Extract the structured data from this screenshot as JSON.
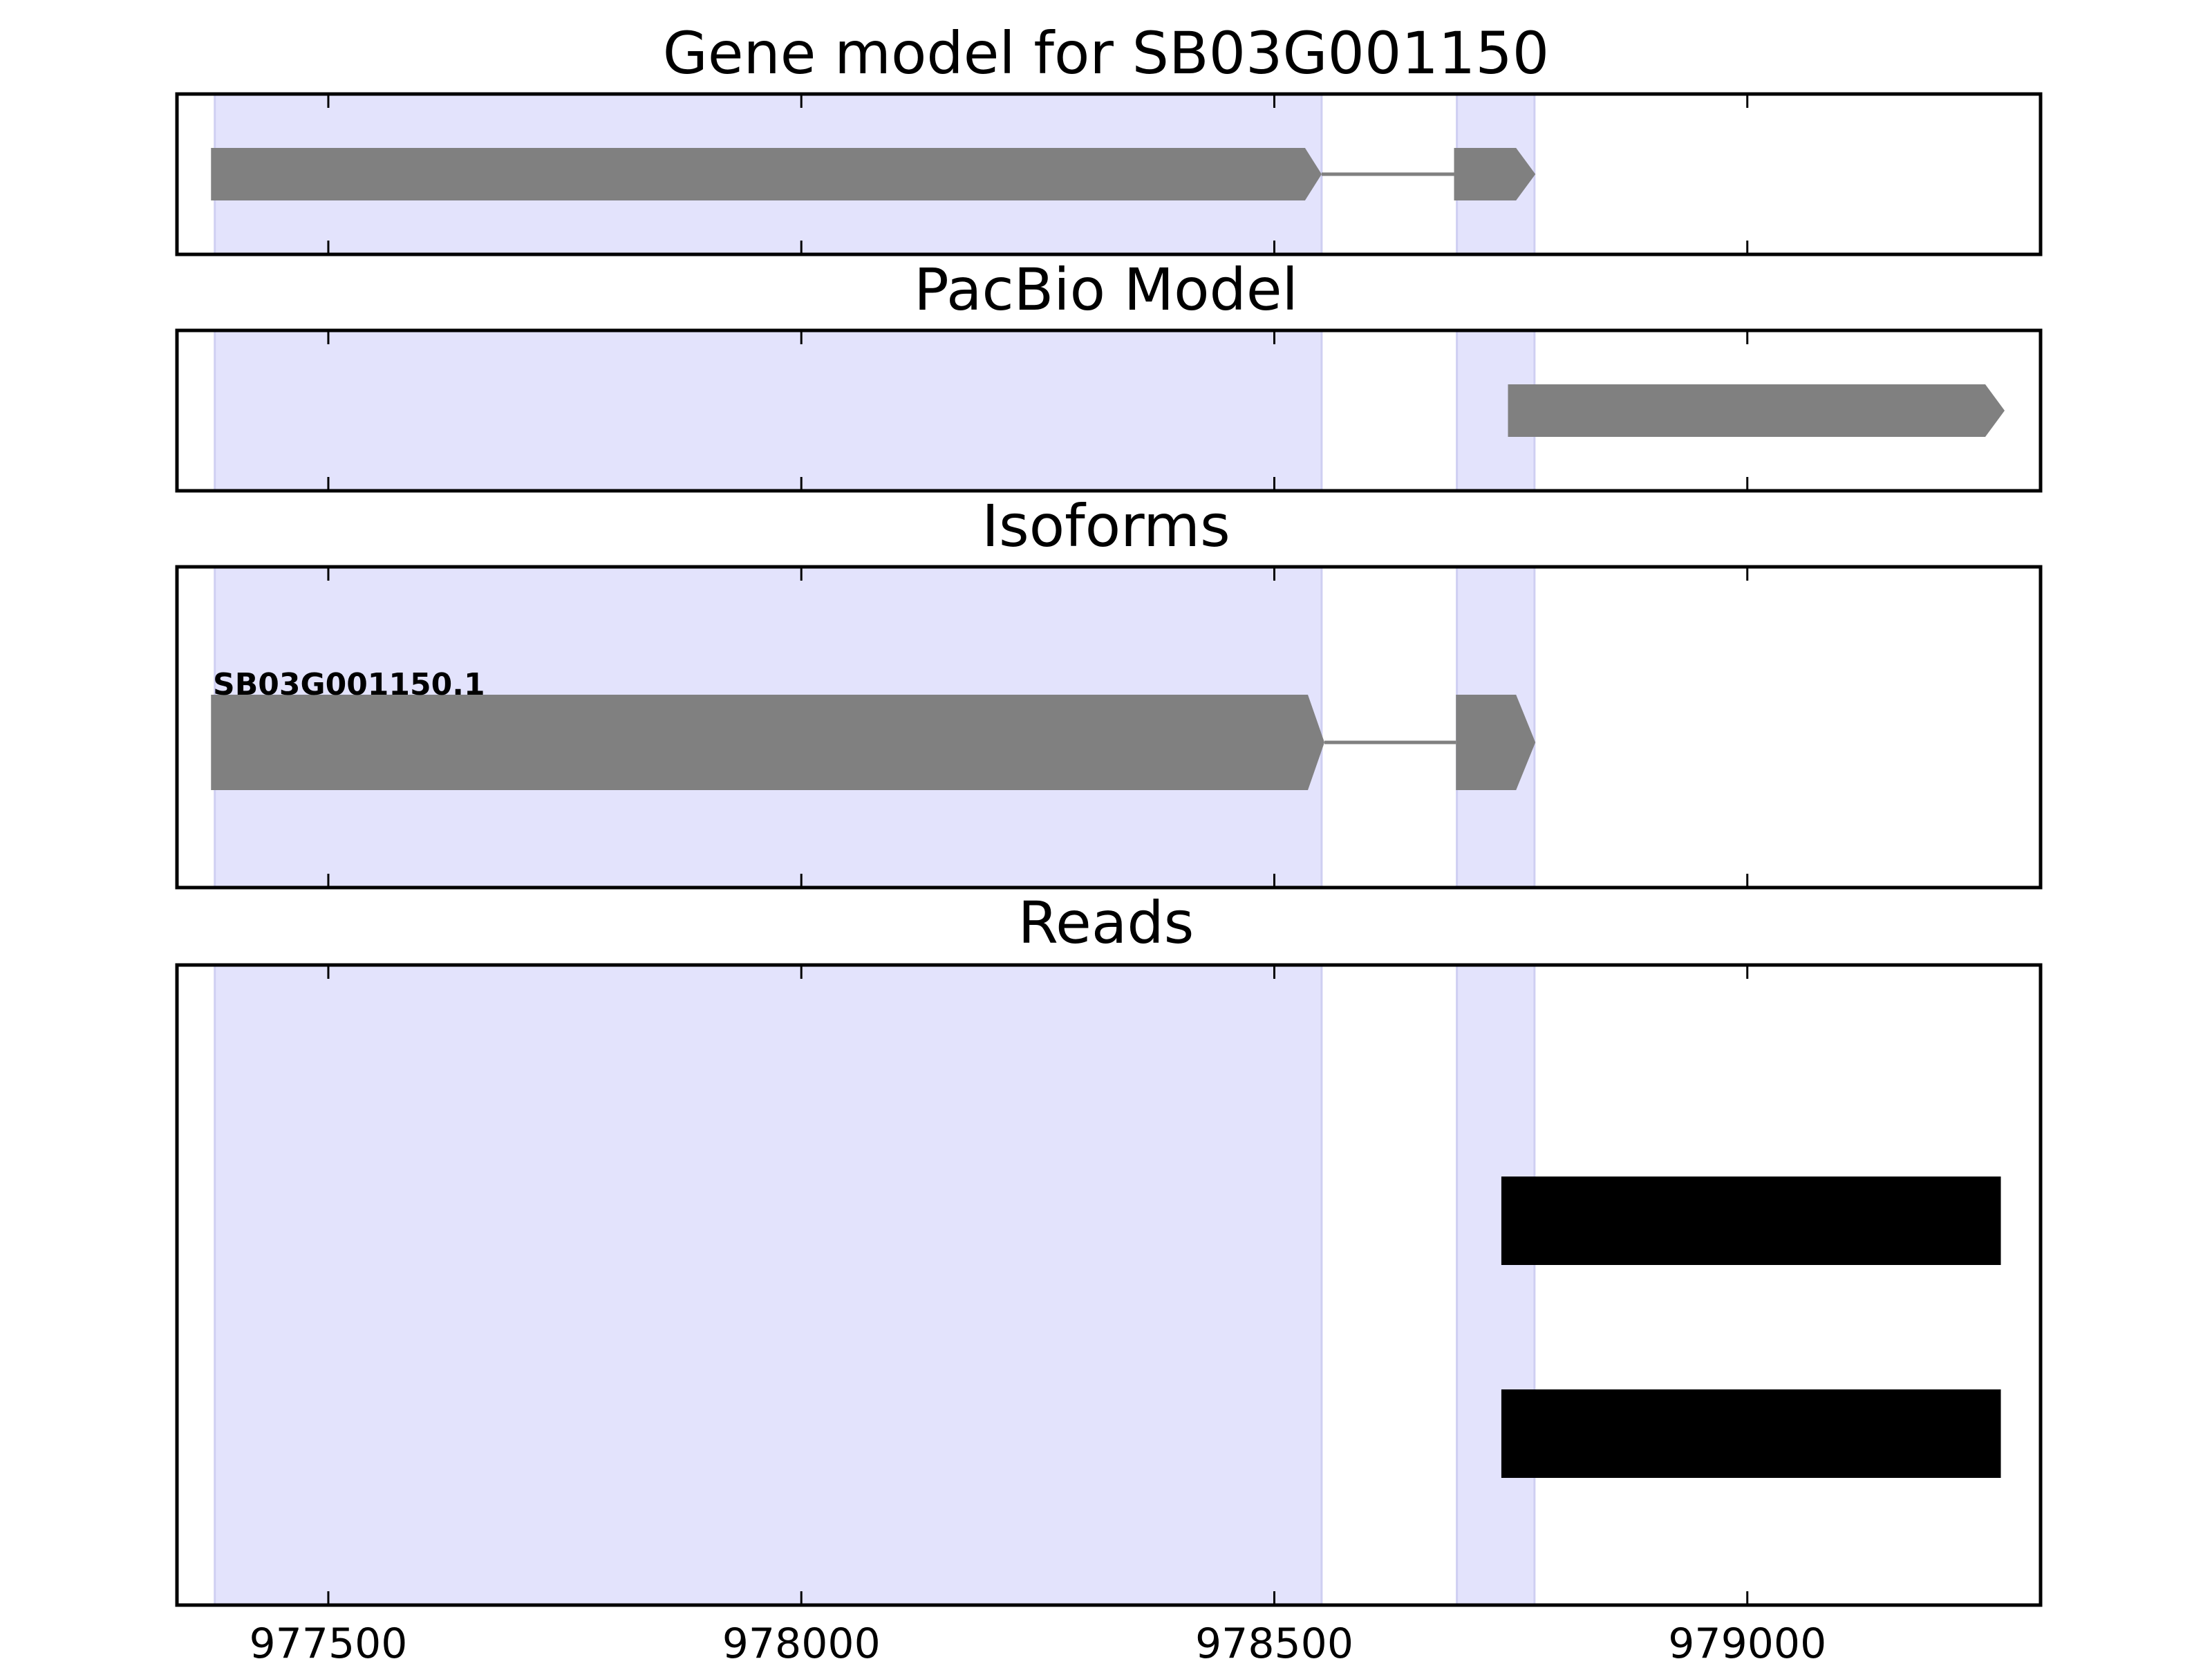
{
  "chart_data": {
    "type": "gene-model-tracks",
    "x_range": [
      977340,
      979310
    ],
    "x_ticks": [
      977500,
      978000,
      978500,
      979000
    ],
    "x_tick_labels": [
      "977500",
      "978000",
      "978500",
      "979000"
    ],
    "highlight_regions": [
      [
        977380,
        978550
      ],
      [
        978693,
        978775
      ]
    ],
    "colors": {
      "highlight": "#e3e3fc",
      "highlight_edge": "#cfcff2",
      "feature": "#808080",
      "read": "#000000",
      "frame": "#000000"
    },
    "panels": [
      {
        "title": "Gene model for SB03G001150",
        "features": [
          {
            "kind": "exon",
            "start": 977376,
            "end": 978550,
            "strand": "+",
            "arrow": false
          },
          {
            "kind": "intron",
            "start": 978550,
            "end": 978690
          },
          {
            "kind": "exon",
            "start": 978690,
            "end": 978776,
            "strand": "+",
            "arrow": true
          }
        ]
      },
      {
        "title": "PacBio Model",
        "features": [
          {
            "kind": "exon",
            "start": 978747,
            "end": 979272,
            "strand": "+",
            "arrow": true
          }
        ]
      },
      {
        "title": "Isoforms",
        "isoform_label": "SB03G001150.1",
        "features": [
          {
            "kind": "exon",
            "start": 977376,
            "end": 978553,
            "strand": "+",
            "arrow": false
          },
          {
            "kind": "intron",
            "start": 978553,
            "end": 978692
          },
          {
            "kind": "exon",
            "start": 978692,
            "end": 978776,
            "strand": "+",
            "arrow": true
          }
        ]
      },
      {
        "title": "Reads",
        "reads": [
          {
            "start": 978740,
            "end": 979268
          },
          {
            "start": 978740,
            "end": 979268
          }
        ]
      }
    ]
  }
}
